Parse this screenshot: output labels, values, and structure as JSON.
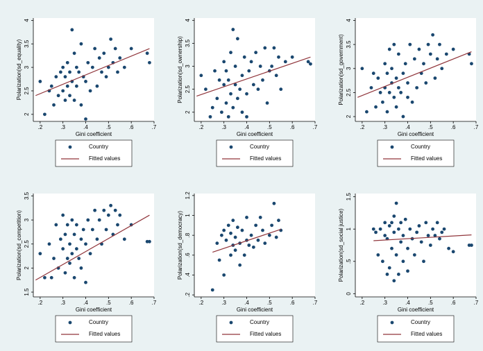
{
  "chart_data": [
    {
      "type": "scatter",
      "xlabel": "Gini coefficient",
      "ylabel": "Polarization(sd_equality)",
      "xlim": [
        0.17,
        0.7
      ],
      "xticks": [
        {
          "value": 0.2,
          "label": ".2"
        },
        {
          "value": 0.3,
          "label": ".3"
        },
        {
          "value": 0.4,
          "label": ".4"
        },
        {
          "value": 0.5,
          "label": ".5"
        },
        {
          "value": 0.6,
          "label": ".6"
        },
        {
          "value": 0.7,
          "label": ".7"
        }
      ],
      "ylim": [
        1.85,
        4.05
      ],
      "yticks": [
        2,
        2.5,
        3,
        3.5,
        4
      ],
      "series": [
        {
          "name": "Country",
          "color": "#1a476f",
          "x": [
            0.2,
            0.22,
            0.24,
            0.25,
            0.26,
            0.27,
            0.28,
            0.29,
            0.3,
            0.3,
            0.31,
            0.31,
            0.32,
            0.32,
            0.33,
            0.33,
            0.34,
            0.34,
            0.35,
            0.35,
            0.36,
            0.36,
            0.37,
            0.38,
            0.38,
            0.39,
            0.4,
            0.4,
            0.41,
            0.42,
            0.43,
            0.44,
            0.45,
            0.46,
            0.47,
            0.48,
            0.49,
            0.5,
            0.51,
            0.52,
            0.53,
            0.54,
            0.55,
            0.57,
            0.6,
            0.67,
            0.68
          ],
          "values": [
            2.7,
            2.0,
            2.5,
            2.6,
            2.2,
            2.8,
            2.4,
            2.9,
            3.0,
            2.5,
            2.3,
            2.8,
            2.6,
            3.1,
            2.4,
            2.9,
            3.8,
            2.7,
            2.3,
            3.3,
            2.6,
            3.0,
            2.9,
            2.2,
            3.5,
            2.8,
            1.9,
            2.7,
            3.1,
            2.5,
            3.0,
            3.4,
            2.6,
            3.2,
            2.9,
            3.3,
            2.8,
            3.0,
            3.6,
            3.1,
            3.4,
            2.9,
            3.2,
            3.0,
            3.4,
            3.3,
            3.1
          ]
        },
        {
          "name": "Fitted values",
          "type": "line",
          "color": "#90353b",
          "x": [
            0.18,
            0.68
          ],
          "values": [
            2.4,
            3.4
          ]
        }
      ]
    },
    {
      "type": "scatter",
      "xlabel": "Gini coefficient",
      "ylabel": "Polarization(sd_ownership)",
      "xlim": [
        0.17,
        0.7
      ],
      "xticks": [
        {
          "value": 0.2,
          "label": ".2"
        },
        {
          "value": 0.3,
          "label": ".3"
        },
        {
          "value": 0.4,
          "label": ".4"
        },
        {
          "value": 0.5,
          "label": ".5"
        },
        {
          "value": 0.6,
          "label": ".6"
        },
        {
          "value": 0.7,
          "label": ".7"
        }
      ],
      "ylim": [
        1.8,
        4.05
      ],
      "yticks": [
        2,
        2.5,
        3,
        3.5,
        4
      ],
      "series": [
        {
          "name": "Country",
          "color": "#1a476f",
          "x": [
            0.2,
            0.22,
            0.24,
            0.25,
            0.26,
            0.27,
            0.28,
            0.29,
            0.3,
            0.3,
            0.31,
            0.31,
            0.32,
            0.32,
            0.33,
            0.33,
            0.34,
            0.34,
            0.35,
            0.35,
            0.36,
            0.36,
            0.37,
            0.38,
            0.38,
            0.39,
            0.4,
            0.4,
            0.41,
            0.42,
            0.43,
            0.44,
            0.45,
            0.46,
            0.47,
            0.48,
            0.49,
            0.5,
            0.51,
            0.52,
            0.53,
            0.54,
            0.55,
            0.57,
            0.6,
            0.67,
            0.68
          ],
          "values": [
            2.8,
            2.5,
            1.9,
            2.1,
            2.9,
            2.3,
            2.7,
            2.0,
            2.6,
            3.1,
            2.2,
            2.9,
            1.9,
            2.7,
            3.3,
            2.4,
            3.8,
            2.1,
            2.6,
            3.0,
            2.3,
            3.6,
            2.5,
            2.0,
            2.8,
            3.2,
            1.9,
            2.4,
            2.9,
            3.1,
            2.6,
            3.3,
            2.5,
            3.0,
            2.7,
            3.4,
            2.2,
            2.9,
            3.0,
            3.4,
            2.8,
            3.2,
            2.5,
            3.1,
            3.2,
            3.1,
            3.05
          ]
        },
        {
          "name": "Fitted values",
          "type": "line",
          "color": "#90353b",
          "x": [
            0.18,
            0.68
          ],
          "values": [
            2.35,
            3.2
          ]
        }
      ]
    },
    {
      "type": "scatter",
      "xlabel": "Gini coefficient",
      "ylabel": "Polarization(sd_government)",
      "xlim": [
        0.17,
        0.7
      ],
      "xticks": [
        {
          "value": 0.2,
          "label": ".2"
        },
        {
          "value": 0.3,
          "label": ".3"
        },
        {
          "value": 0.4,
          "label": ".4"
        },
        {
          "value": 0.5,
          "label": ".5"
        },
        {
          "value": 0.6,
          "label": ".6"
        },
        {
          "value": 0.7,
          "label": ".7"
        }
      ],
      "ylim": [
        1.9,
        4.05
      ],
      "yticks": [
        2,
        2.5,
        3,
        3.5,
        4
      ],
      "series": [
        {
          "name": "Country",
          "color": "#1a476f",
          "x": [
            0.2,
            0.22,
            0.24,
            0.25,
            0.26,
            0.27,
            0.28,
            0.29,
            0.3,
            0.3,
            0.31,
            0.31,
            0.32,
            0.32,
            0.33,
            0.33,
            0.34,
            0.34,
            0.35,
            0.35,
            0.36,
            0.36,
            0.37,
            0.38,
            0.38,
            0.39,
            0.4,
            0.4,
            0.41,
            0.42,
            0.43,
            0.44,
            0.45,
            0.46,
            0.47,
            0.48,
            0.49,
            0.5,
            0.51,
            0.52,
            0.53,
            0.54,
            0.55,
            0.57,
            0.6,
            0.67,
            0.68
          ],
          "values": [
            3.0,
            2.1,
            2.6,
            2.9,
            2.2,
            2.8,
            2.5,
            2.3,
            3.1,
            2.6,
            2.9,
            2.1,
            3.4,
            2.5,
            2.7,
            3.0,
            2.4,
            3.5,
            2.2,
            2.8,
            2.6,
            3.3,
            2.5,
            2.0,
            2.9,
            3.1,
            2.4,
            2.7,
            3.5,
            2.3,
            3.2,
            2.6,
            3.4,
            2.9,
            3.1,
            2.7,
            3.5,
            3.3,
            3.7,
            2.8,
            3.2,
            3.5,
            3.0,
            3.3,
            3.4,
            3.3,
            3.1
          ]
        },
        {
          "name": "Fitted values",
          "type": "line",
          "color": "#90353b",
          "x": [
            0.18,
            0.68
          ],
          "values": [
            2.4,
            3.35
          ]
        }
      ]
    },
    {
      "type": "scatter",
      "xlabel": "Gini coefficient",
      "ylabel": "Polarization(sd_competition)",
      "xlim": [
        0.17,
        0.7
      ],
      "xticks": [
        {
          "value": 0.2,
          "label": ".2"
        },
        {
          "value": 0.3,
          "label": ".3"
        },
        {
          "value": 0.4,
          "label": ".4"
        },
        {
          "value": 0.5,
          "label": ".5"
        },
        {
          "value": 0.6,
          "label": ".6"
        },
        {
          "value": 0.7,
          "label": ".7"
        }
      ],
      "ylim": [
        1.4,
        3.55
      ],
      "yticks": [
        1.5,
        2,
        2.5,
        3,
        3.5
      ],
      "series": [
        {
          "name": "Country",
          "color": "#1a476f",
          "x": [
            0.2,
            0.22,
            0.24,
            0.25,
            0.26,
            0.27,
            0.28,
            0.29,
            0.3,
            0.3,
            0.31,
            0.31,
            0.32,
            0.32,
            0.33,
            0.33,
            0.34,
            0.34,
            0.35,
            0.35,
            0.36,
            0.36,
            0.37,
            0.38,
            0.38,
            0.39,
            0.4,
            0.4,
            0.41,
            0.42,
            0.43,
            0.44,
            0.45,
            0.46,
            0.47,
            0.48,
            0.49,
            0.5,
            0.51,
            0.52,
            0.53,
            0.54,
            0.55,
            0.57,
            0.6,
            0.67,
            0.68
          ],
          "values": [
            2.3,
            1.8,
            2.5,
            1.8,
            2.2,
            2.9,
            2.0,
            2.6,
            2.4,
            3.1,
            1.9,
            2.7,
            2.2,
            2.9,
            2.1,
            2.5,
            3.0,
            2.3,
            1.8,
            2.7,
            2.4,
            2.9,
            2.2,
            2.0,
            2.6,
            2.8,
            1.7,
            2.5,
            3.0,
            2.3,
            2.8,
            3.2,
            2.6,
            3.0,
            2.5,
            3.2,
            2.8,
            3.1,
            3.3,
            2.7,
            3.2,
            2.9,
            3.1,
            2.6,
            2.9,
            2.55,
            2.55
          ]
        },
        {
          "name": "Fitted values",
          "type": "line",
          "color": "#90353b",
          "x": [
            0.18,
            0.68
          ],
          "values": [
            1.75,
            3.1
          ]
        }
      ]
    },
    {
      "type": "scatter",
      "xlabel": "Gini coefficient",
      "ylabel": "Polarization(sd_democracy)",
      "xlim": [
        0.17,
        0.7
      ],
      "xticks": [
        {
          "value": 0.2,
          "label": ".2"
        },
        {
          "value": 0.3,
          "label": ".3"
        },
        {
          "value": 0.4,
          "label": ".4"
        },
        {
          "value": 0.5,
          "label": ".5"
        },
        {
          "value": 0.6,
          "label": ".6"
        },
        {
          "value": 0.7,
          "label": ".7"
        }
      ],
      "ylim": [
        0.18,
        1.22
      ],
      "yticks": [
        {
          "value": 0.2,
          "label": ".2"
        },
        {
          "value": 0.4,
          "label": ".4"
        },
        {
          "value": 0.6,
          "label": ".6"
        },
        {
          "value": 0.8,
          "label": ".8"
        },
        1,
        1.2
      ],
      "series": [
        {
          "name": "Country",
          "color": "#1a476f",
          "x": [
            0.25,
            0.27,
            0.28,
            0.29,
            0.3,
            0.3,
            0.31,
            0.32,
            0.33,
            0.33,
            0.34,
            0.34,
            0.35,
            0.35,
            0.36,
            0.37,
            0.37,
            0.38,
            0.39,
            0.4,
            0.4,
            0.41,
            0.42,
            0.43,
            0.44,
            0.45,
            0.46,
            0.47,
            0.48,
            0.5,
            0.51,
            0.52,
            0.53,
            0.54,
            0.55
          ],
          "values": [
            0.25,
            0.72,
            0.55,
            0.8,
            0.85,
            0.4,
            0.75,
            0.9,
            0.6,
            0.82,
            0.7,
            0.95,
            0.65,
            0.78,
            0.88,
            0.5,
            0.72,
            0.85,
            0.6,
            0.75,
            0.98,
            0.7,
            0.8,
            0.68,
            0.9,
            0.75,
            0.98,
            0.85,
            0.72,
            0.8,
            0.9,
            1.12,
            0.78,
            0.95,
            0.85
          ]
        },
        {
          "name": "Fitted values",
          "type": "line",
          "color": "#90353b",
          "x": [
            0.25,
            0.55
          ],
          "values": [
            0.63,
            0.86
          ]
        }
      ]
    },
    {
      "type": "scatter",
      "xlabel": "Gini coefficient",
      "ylabel": "Polarization(sd_social justice)",
      "xlim": [
        0.17,
        0.7
      ],
      "xticks": [
        {
          "value": 0.2,
          "label": ".2"
        },
        {
          "value": 0.3,
          "label": ".3"
        },
        {
          "value": 0.4,
          "label": ".4"
        },
        {
          "value": 0.5,
          "label": ".5"
        },
        {
          "value": 0.6,
          "label": ".6"
        },
        {
          "value": 0.7,
          "label": ".7"
        }
      ],
      "ylim": [
        -0.05,
        1.55
      ],
      "yticks": [
        0,
        {
          "value": 0.5,
          "label": ".5"
        },
        1,
        1.5
      ],
      "series": [
        {
          "name": "Country",
          "color": "#1a476f",
          "x": [
            0.25,
            0.26,
            0.27,
            0.28,
            0.29,
            0.3,
            0.3,
            0.31,
            0.31,
            0.32,
            0.32,
            0.33,
            0.33,
            0.34,
            0.34,
            0.34,
            0.35,
            0.35,
            0.36,
            0.36,
            0.37,
            0.37,
            0.38,
            0.38,
            0.39,
            0.4,
            0.4,
            0.41,
            0.42,
            0.43,
            0.44,
            0.45,
            0.46,
            0.47,
            0.48,
            0.49,
            0.5,
            0.51,
            0.52,
            0.53,
            0.54,
            0.55,
            0.56,
            0.58,
            0.6,
            0.67,
            0.68
          ],
          "values": [
            1.0,
            0.95,
            0.6,
            1.0,
            0.5,
            0.9,
            1.1,
            0.3,
            0.85,
            1.05,
            0.4,
            1.1,
            0.7,
            0.95,
            0.2,
            1.2,
            1.4,
            0.6,
            1.0,
            0.3,
            0.8,
            1.1,
            0.5,
            0.9,
            1.15,
            0.7,
            0.35,
            1.0,
            0.85,
            0.6,
            0.95,
            1.05,
            0.8,
            0.5,
            1.1,
            0.9,
            0.75,
            1.0,
            0.9,
            1.1,
            0.85,
            0.95,
            1.0,
            0.7,
            0.65,
            0.75,
            0.75
          ]
        },
        {
          "name": "Fitted values",
          "type": "line",
          "color": "#90353b",
          "x": [
            0.25,
            0.68
          ],
          "values": [
            0.82,
            0.91
          ]
        }
      ]
    }
  ]
}
